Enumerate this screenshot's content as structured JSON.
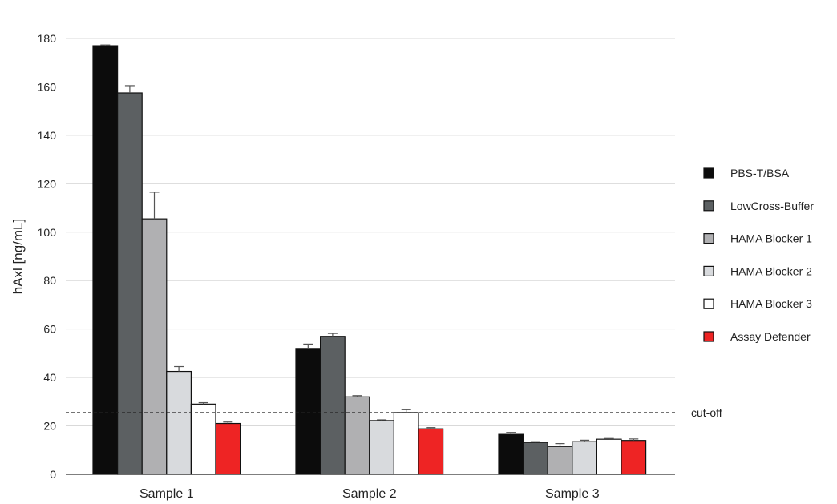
{
  "chart_data": {
    "type": "bar",
    "ylabel": "hAxl [ng/mL]",
    "xlabel": "",
    "ylim": [
      0,
      180
    ],
    "yticks": [
      0,
      20,
      40,
      60,
      80,
      100,
      120,
      140,
      160,
      180
    ],
    "grid": true,
    "legend_position": "right",
    "categories": [
      "Sample 1",
      "Sample 2",
      "Sample 3"
    ],
    "series": [
      {
        "name": "PBS-T/BSA",
        "color": "#0c0c0c",
        "values": [
          177,
          52,
          16.5
        ],
        "errors": [
          0.3,
          1.8,
          0.8
        ]
      },
      {
        "name": "LowCross-Buffer",
        "color": "#5c6062",
        "values": [
          157.5,
          57,
          13.2
        ],
        "errors": [
          3,
          1.2,
          0.3
        ]
      },
      {
        "name": "HAMA Blocker 1",
        "color": "#b0b0b2",
        "values": [
          105.5,
          32,
          11.5
        ],
        "errors": [
          11,
          0.5,
          1.2
        ]
      },
      {
        "name": "HAMA Blocker 2",
        "color": "#d8dadd",
        "values": [
          42.5,
          22.2,
          13.5
        ],
        "errors": [
          2,
          0.3,
          0.6
        ]
      },
      {
        "name": "HAMA Blocker 3",
        "color": "#ffffff",
        "values": [
          29,
          25.5,
          14.5
        ],
        "errors": [
          0.6,
          1.2,
          0.3
        ]
      },
      {
        "name": "Assay Defender",
        "color": "#ee2424",
        "values": [
          21,
          18.8,
          14
        ],
        "errors": [
          0.6,
          0.5,
          0.6
        ]
      }
    ],
    "reference_line": {
      "label": "cut-off",
      "value": 25.5,
      "style": "dashed"
    }
  }
}
